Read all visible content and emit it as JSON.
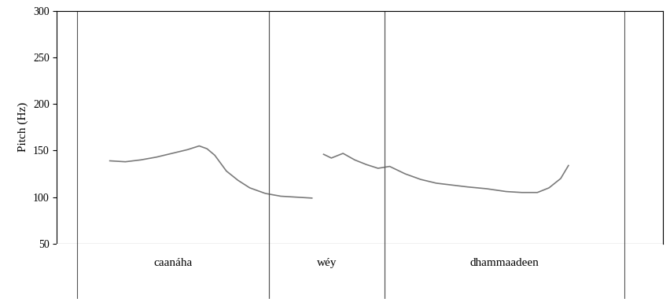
{
  "chart_data": {
    "type": "line",
    "y_label": "Pitch (Hz)",
    "x": [
      0.136,
      0.176,
      0.216,
      0.256,
      0.296,
      0.336,
      0.366,
      0.386,
      0.406,
      0.436,
      0.466,
      0.496,
      0.536,
      0.576,
      0.616,
      0.656,
      0.676,
      0.686,
      0.706,
      0.736,
      0.766,
      0.796,
      0.826,
      0.856,
      0.896,
      0.936,
      0.976,
      1.016,
      1.056,
      1.106,
      1.156,
      1.196,
      1.236,
      1.266,
      1.296,
      1.316
    ],
    "series": [
      {
        "name": "pitch",
        "color": "#7a7a7a",
        "line_style": "solid",
        "values": [
          139,
          138,
          140,
          143,
          147,
          151,
          155,
          152,
          145,
          128,
          118,
          110,
          104,
          101,
          100,
          99,
          null,
          146,
          142,
          147,
          140,
          135,
          131,
          133,
          125,
          119,
          115,
          113,
          111,
          109,
          106,
          105,
          105,
          110,
          120,
          134
        ]
      }
    ],
    "xlim": [
      0,
      1.56
    ],
    "xticks": [],
    "ylim": [
      50,
      300
    ],
    "yticks": [
      50,
      100,
      150,
      200,
      250,
      300
    ],
    "tick_labels": "y",
    "grid": false,
    "intervals": [
      {
        "label": "caanáha",
        "start": 0.052,
        "end": 0.546
      },
      {
        "label": "wéy",
        "start": 0.546,
        "end": 0.842
      },
      {
        "label": "dhammaadeen",
        "start": 0.842,
        "end": 1.46
      }
    ]
  }
}
